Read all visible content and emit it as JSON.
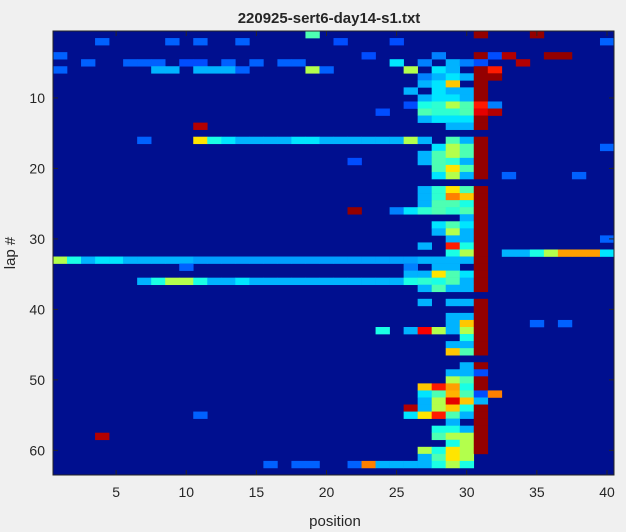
{
  "chart_data": {
    "type": "heatmap",
    "title": "220925-sert6-day14-s1.txt",
    "xlabel": "position",
    "ylabel": "lap #",
    "xlim": [
      0.5,
      40.5
    ],
    "ylim": [
      0.5,
      63.5
    ],
    "x_reversed": false,
    "y_reversed": true,
    "xticks": [
      5,
      10,
      15,
      20,
      25,
      30,
      35,
      40
    ],
    "yticks": [
      10,
      20,
      30,
      40,
      50,
      60
    ],
    "colormap": "jet",
    "background_color": "#000f8f",
    "value_range": [
      0,
      1
    ],
    "note_values": "cells list [lap, position, value]; unlisted cells are 0",
    "cells": [
      [
        1,
        19,
        0.45
      ],
      [
        1,
        31,
        0.98
      ],
      [
        1,
        35,
        0.98
      ],
      [
        2,
        4,
        0.22
      ],
      [
        2,
        9,
        0.22
      ],
      [
        2,
        11,
        0.22
      ],
      [
        2,
        14,
        0.22
      ],
      [
        2,
        21,
        0.2
      ],
      [
        2,
        25,
        0.2
      ],
      [
        2,
        40,
        0.22
      ],
      [
        4,
        1,
        0.22
      ],
      [
        4,
        23,
        0.2
      ],
      [
        4,
        28,
        0.25
      ],
      [
        4,
        31,
        0.98
      ],
      [
        4,
        32,
        0.2
      ],
      [
        4,
        33,
        0.95
      ],
      [
        4,
        36,
        0.98
      ],
      [
        4,
        37,
        0.98
      ],
      [
        5,
        3,
        0.22
      ],
      [
        5,
        6,
        0.22
      ],
      [
        5,
        7,
        0.22
      ],
      [
        5,
        8,
        0.22
      ],
      [
        5,
        10,
        0.2
      ],
      [
        5,
        11,
        0.2
      ],
      [
        5,
        13,
        0.22
      ],
      [
        5,
        15,
        0.22
      ],
      [
        5,
        17,
        0.22
      ],
      [
        5,
        18,
        0.22
      ],
      [
        5,
        25,
        0.35
      ],
      [
        5,
        27,
        0.25
      ],
      [
        5,
        29,
        0.3
      ],
      [
        5,
        30,
        0.25
      ],
      [
        5,
        31,
        0.2
      ],
      [
        5,
        34,
        0.95
      ],
      [
        6,
        1,
        0.22
      ],
      [
        6,
        8,
        0.3
      ],
      [
        6,
        9,
        0.3
      ],
      [
        6,
        11,
        0.3
      ],
      [
        6,
        12,
        0.3
      ],
      [
        6,
        13,
        0.3
      ],
      [
        6,
        14,
        0.22
      ],
      [
        6,
        19,
        0.55
      ],
      [
        6,
        20,
        0.22
      ],
      [
        6,
        26,
        0.55
      ],
      [
        6,
        28,
        0.35
      ],
      [
        6,
        29,
        0.3
      ],
      [
        6,
        31,
        0.98
      ],
      [
        6,
        32,
        0.85
      ],
      [
        7,
        27,
        0.25
      ],
      [
        7,
        28,
        0.3
      ],
      [
        7,
        29,
        0.35
      ],
      [
        7,
        30,
        0.3
      ],
      [
        7,
        31,
        0.98
      ],
      [
        7,
        32,
        0.98
      ],
      [
        8,
        27,
        0.3
      ],
      [
        8,
        28,
        0.35
      ],
      [
        8,
        29,
        0.68
      ],
      [
        8,
        31,
        0.98
      ],
      [
        9,
        26,
        0.3
      ],
      [
        9,
        28,
        0.35
      ],
      [
        9,
        29,
        0.3
      ],
      [
        9,
        30,
        0.3
      ],
      [
        9,
        31,
        0.98
      ],
      [
        10,
        27,
        0.3
      ],
      [
        10,
        28,
        0.35
      ],
      [
        10,
        29,
        0.35
      ],
      [
        10,
        30,
        0.3
      ],
      [
        10,
        31,
        0.98
      ],
      [
        11,
        26,
        0.2
      ],
      [
        11,
        27,
        0.4
      ],
      [
        11,
        28,
        0.42
      ],
      [
        11,
        29,
        0.55
      ],
      [
        11,
        30,
        0.45
      ],
      [
        11,
        31,
        0.85
      ],
      [
        11,
        32,
        0.25
      ],
      [
        12,
        24,
        0.2
      ],
      [
        12,
        27,
        0.45
      ],
      [
        12,
        28,
        0.42
      ],
      [
        12,
        29,
        0.42
      ],
      [
        12,
        30,
        0.45
      ],
      [
        12,
        31,
        0.9
      ],
      [
        12,
        32,
        0.95
      ],
      [
        13,
        27,
        0.3
      ],
      [
        13,
        28,
        0.35
      ],
      [
        13,
        29,
        0.35
      ],
      [
        13,
        30,
        0.35
      ],
      [
        13,
        31,
        0.98
      ],
      [
        14,
        11,
        0.95
      ],
      [
        14,
        29,
        0.3
      ],
      [
        14,
        30,
        0.3
      ],
      [
        14,
        31,
        0.98
      ],
      [
        16,
        7,
        0.22
      ],
      [
        16,
        11,
        0.65
      ],
      [
        16,
        12,
        0.4
      ],
      [
        16,
        13,
        0.35
      ],
      [
        16,
        14,
        0.3
      ],
      [
        16,
        15,
        0.3
      ],
      [
        16,
        16,
        0.3
      ],
      [
        16,
        17,
        0.3
      ],
      [
        16,
        18,
        0.35
      ],
      [
        16,
        19,
        0.35
      ],
      [
        16,
        20,
        0.3
      ],
      [
        16,
        21,
        0.3
      ],
      [
        16,
        22,
        0.3
      ],
      [
        16,
        23,
        0.3
      ],
      [
        16,
        24,
        0.3
      ],
      [
        16,
        25,
        0.3
      ],
      [
        16,
        26,
        0.55
      ],
      [
        16,
        27,
        0.3
      ],
      [
        16,
        29,
        0.45
      ],
      [
        16,
        30,
        0.3
      ],
      [
        16,
        31,
        0.98
      ],
      [
        17,
        28,
        0.35
      ],
      [
        17,
        29,
        0.55
      ],
      [
        17,
        30,
        0.45
      ],
      [
        17,
        31,
        0.98
      ],
      [
        17,
        40,
        0.22
      ],
      [
        18,
        27,
        0.3
      ],
      [
        18,
        28,
        0.45
      ],
      [
        18,
        29,
        0.55
      ],
      [
        18,
        30,
        0.45
      ],
      [
        18,
        31,
        0.98
      ],
      [
        19,
        22,
        0.2
      ],
      [
        19,
        27,
        0.3
      ],
      [
        19,
        28,
        0.45
      ],
      [
        19,
        29,
        0.42
      ],
      [
        19,
        30,
        0.3
      ],
      [
        19,
        31,
        0.98
      ],
      [
        20,
        28,
        0.45
      ],
      [
        20,
        29,
        0.65
      ],
      [
        20,
        30,
        0.45
      ],
      [
        20,
        31,
        0.98
      ],
      [
        21,
        28,
        0.35
      ],
      [
        21,
        29,
        0.55
      ],
      [
        21,
        30,
        0.3
      ],
      [
        21,
        31,
        0.98
      ],
      [
        21,
        33,
        0.22
      ],
      [
        21,
        38,
        0.22
      ],
      [
        23,
        27,
        0.3
      ],
      [
        23,
        28,
        0.42
      ],
      [
        23,
        29,
        0.65
      ],
      [
        23,
        30,
        0.45
      ],
      [
        23,
        31,
        0.98
      ],
      [
        24,
        27,
        0.3
      ],
      [
        24,
        28,
        0.42
      ],
      [
        24,
        29,
        0.75
      ],
      [
        24,
        30,
        0.68
      ],
      [
        24,
        31,
        0.98
      ],
      [
        25,
        27,
        0.3
      ],
      [
        25,
        28,
        0.45
      ],
      [
        25,
        29,
        0.45
      ],
      [
        25,
        30,
        0.4
      ],
      [
        25,
        31,
        0.98
      ],
      [
        26,
        22,
        0.98
      ],
      [
        26,
        25,
        0.25
      ],
      [
        26,
        26,
        0.35
      ],
      [
        26,
        27,
        0.42
      ],
      [
        26,
        28,
        0.45
      ],
      [
        26,
        29,
        0.42
      ],
      [
        26,
        30,
        0.45
      ],
      [
        26,
        31,
        0.98
      ],
      [
        27,
        30,
        0.3
      ],
      [
        27,
        31,
        0.98
      ],
      [
        28,
        28,
        0.35
      ],
      [
        28,
        29,
        0.45
      ],
      [
        28,
        30,
        0.35
      ],
      [
        28,
        31,
        0.98
      ],
      [
        29,
        28,
        0.3
      ],
      [
        29,
        29,
        0.55
      ],
      [
        29,
        30,
        0.3
      ],
      [
        29,
        31,
        0.98
      ],
      [
        30,
        29,
        0.3
      ],
      [
        30,
        30,
        0.3
      ],
      [
        30,
        31,
        0.98
      ],
      [
        30,
        40,
        0.22
      ],
      [
        31,
        27,
        0.3
      ],
      [
        31,
        29,
        0.85
      ],
      [
        31,
        30,
        0.4
      ],
      [
        31,
        31,
        0.98
      ],
      [
        32,
        29,
        0.4
      ],
      [
        32,
        30,
        0.55
      ],
      [
        32,
        31,
        0.98
      ],
      [
        32,
        33,
        0.3
      ],
      [
        32,
        34,
        0.3
      ],
      [
        32,
        35,
        0.4
      ],
      [
        32,
        36,
        0.55
      ],
      [
        32,
        37,
        0.72
      ],
      [
        32,
        38,
        0.72
      ],
      [
        32,
        39,
        0.72
      ],
      [
        32,
        40,
        0.35
      ],
      [
        33,
        1,
        0.55
      ],
      [
        33,
        2,
        0.4
      ],
      [
        33,
        3,
        0.3
      ],
      [
        33,
        4,
        0.35
      ],
      [
        33,
        5,
        0.35
      ],
      [
        33,
        6,
        0.3
      ],
      [
        33,
        7,
        0.3
      ],
      [
        33,
        8,
        0.3
      ],
      [
        33,
        9,
        0.3
      ],
      [
        33,
        10,
        0.3
      ],
      [
        33,
        11,
        0.28
      ],
      [
        33,
        12,
        0.28
      ],
      [
        33,
        13,
        0.28
      ],
      [
        33,
        14,
        0.28
      ],
      [
        33,
        15,
        0.28
      ],
      [
        33,
        16,
        0.28
      ],
      [
        33,
        17,
        0.28
      ],
      [
        33,
        18,
        0.28
      ],
      [
        33,
        19,
        0.28
      ],
      [
        33,
        20,
        0.28
      ],
      [
        33,
        21,
        0.28
      ],
      [
        33,
        22,
        0.28
      ],
      [
        33,
        23,
        0.28
      ],
      [
        33,
        24,
        0.28
      ],
      [
        33,
        25,
        0.28
      ],
      [
        33,
        26,
        0.28
      ],
      [
        33,
        27,
        0.3
      ],
      [
        33,
        28,
        0.3
      ],
      [
        33,
        29,
        0.3
      ],
      [
        33,
        30,
        0.3
      ],
      [
        33,
        31,
        0.98
      ],
      [
        34,
        10,
        0.22
      ],
      [
        34,
        26,
        0.25
      ],
      [
        34,
        28,
        0.3
      ],
      [
        34,
        29,
        0.3
      ],
      [
        34,
        31,
        0.98
      ],
      [
        35,
        26,
        0.3
      ],
      [
        35,
        27,
        0.3
      ],
      [
        35,
        28,
        0.65
      ],
      [
        35,
        29,
        0.45
      ],
      [
        35,
        30,
        0.35
      ],
      [
        35,
        31,
        0.98
      ],
      [
        36,
        7,
        0.3
      ],
      [
        36,
        8,
        0.4
      ],
      [
        36,
        9,
        0.55
      ],
      [
        36,
        10,
        0.55
      ],
      [
        36,
        11,
        0.4
      ],
      [
        36,
        12,
        0.3
      ],
      [
        36,
        13,
        0.3
      ],
      [
        36,
        14,
        0.35
      ],
      [
        36,
        15,
        0.3
      ],
      [
        36,
        16,
        0.3
      ],
      [
        36,
        17,
        0.3
      ],
      [
        36,
        18,
        0.3
      ],
      [
        36,
        19,
        0.3
      ],
      [
        36,
        20,
        0.3
      ],
      [
        36,
        21,
        0.3
      ],
      [
        36,
        22,
        0.3
      ],
      [
        36,
        23,
        0.3
      ],
      [
        36,
        24,
        0.3
      ],
      [
        36,
        25,
        0.3
      ],
      [
        36,
        26,
        0.4
      ],
      [
        36,
        27,
        0.42
      ],
      [
        36,
        28,
        0.4
      ],
      [
        36,
        29,
        0.45
      ],
      [
        36,
        30,
        0.3
      ],
      [
        36,
        31,
        0.98
      ],
      [
        37,
        27,
        0.3
      ],
      [
        37,
        28,
        0.45
      ],
      [
        37,
        29,
        0.3
      ],
      [
        37,
        30,
        0.3
      ],
      [
        37,
        31,
        0.98
      ],
      [
        39,
        27,
        0.3
      ],
      [
        39,
        29,
        0.3
      ],
      [
        39,
        30,
        0.3
      ],
      [
        39,
        31,
        0.98
      ],
      [
        40,
        31,
        0.98
      ],
      [
        41,
        29,
        0.3
      ],
      [
        41,
        30,
        0.3
      ],
      [
        41,
        31,
        0.98
      ],
      [
        42,
        29,
        0.3
      ],
      [
        42,
        30,
        0.68
      ],
      [
        42,
        31,
        0.98
      ],
      [
        42,
        35,
        0.22
      ],
      [
        42,
        37,
        0.22
      ],
      [
        43,
        24,
        0.4
      ],
      [
        43,
        26,
        0.3
      ],
      [
        43,
        27,
        0.88
      ],
      [
        43,
        28,
        0.55
      ],
      [
        43,
        29,
        0.3
      ],
      [
        43,
        30,
        0.55
      ],
      [
        43,
        31,
        0.98
      ],
      [
        44,
        30,
        0.4
      ],
      [
        44,
        31,
        0.98
      ],
      [
        45,
        29,
        0.3
      ],
      [
        45,
        30,
        0.3
      ],
      [
        45,
        31,
        0.98
      ],
      [
        46,
        29,
        0.68
      ],
      [
        46,
        30,
        0.45
      ],
      [
        46,
        31,
        0.98
      ],
      [
        48,
        30,
        0.3
      ],
      [
        48,
        31,
        0.98
      ],
      [
        49,
        29,
        0.3
      ],
      [
        49,
        30,
        0.3
      ],
      [
        49,
        31,
        0.2
      ],
      [
        50,
        29,
        0.55
      ],
      [
        50,
        30,
        0.45
      ],
      [
        50,
        31,
        0.98
      ],
      [
        51,
        27,
        0.68
      ],
      [
        51,
        28,
        0.85
      ],
      [
        51,
        29,
        0.72
      ],
      [
        51,
        30,
        0.4
      ],
      [
        51,
        31,
        0.98
      ],
      [
        52,
        27,
        0.35
      ],
      [
        52,
        28,
        0.45
      ],
      [
        52,
        29,
        0.7
      ],
      [
        52,
        30,
        0.45
      ],
      [
        52,
        31,
        0.2
      ],
      [
        52,
        32,
        0.75
      ],
      [
        53,
        27,
        0.3
      ],
      [
        53,
        28,
        0.55
      ],
      [
        53,
        29,
        0.9
      ],
      [
        53,
        30,
        0.68
      ],
      [
        53,
        31,
        0.3
      ],
      [
        54,
        26,
        0.95
      ],
      [
        54,
        27,
        0.3
      ],
      [
        54,
        28,
        0.55
      ],
      [
        54,
        29,
        0.68
      ],
      [
        54,
        30,
        0.4
      ],
      [
        54,
        31,
        0.98
      ],
      [
        55,
        11,
        0.22
      ],
      [
        55,
        26,
        0.35
      ],
      [
        55,
        27,
        0.65
      ],
      [
        55,
        28,
        0.85
      ],
      [
        55,
        29,
        0.45
      ],
      [
        55,
        30,
        0.3
      ],
      [
        55,
        31,
        0.98
      ],
      [
        56,
        29,
        0.3
      ],
      [
        56,
        31,
        0.98
      ],
      [
        57,
        28,
        0.4
      ],
      [
        57,
        29,
        0.4
      ],
      [
        57,
        30,
        0.3
      ],
      [
        57,
        31,
        0.98
      ],
      [
        58,
        4,
        0.95
      ],
      [
        58,
        28,
        0.45
      ],
      [
        58,
        29,
        0.55
      ],
      [
        58,
        30,
        0.55
      ],
      [
        58,
        31,
        0.98
      ],
      [
        59,
        29,
        0.4
      ],
      [
        59,
        30,
        0.55
      ],
      [
        59,
        31,
        0.98
      ],
      [
        60,
        27,
        0.55
      ],
      [
        60,
        28,
        0.4
      ],
      [
        60,
        29,
        0.65
      ],
      [
        60,
        30,
        0.55
      ],
      [
        60,
        31,
        0.98
      ],
      [
        61,
        27,
        0.3
      ],
      [
        61,
        28,
        0.45
      ],
      [
        61,
        29,
        0.65
      ],
      [
        61,
        30,
        0.55
      ],
      [
        62,
        16,
        0.22
      ],
      [
        62,
        18,
        0.22
      ],
      [
        62,
        19,
        0.22
      ],
      [
        62,
        22,
        0.22
      ],
      [
        62,
        23,
        0.75
      ],
      [
        62,
        24,
        0.3
      ],
      [
        62,
        25,
        0.3
      ],
      [
        62,
        26,
        0.3
      ],
      [
        62,
        27,
        0.3
      ],
      [
        62,
        28,
        0.4
      ],
      [
        62,
        29,
        0.55
      ],
      [
        62,
        30,
        0.4
      ]
    ]
  }
}
